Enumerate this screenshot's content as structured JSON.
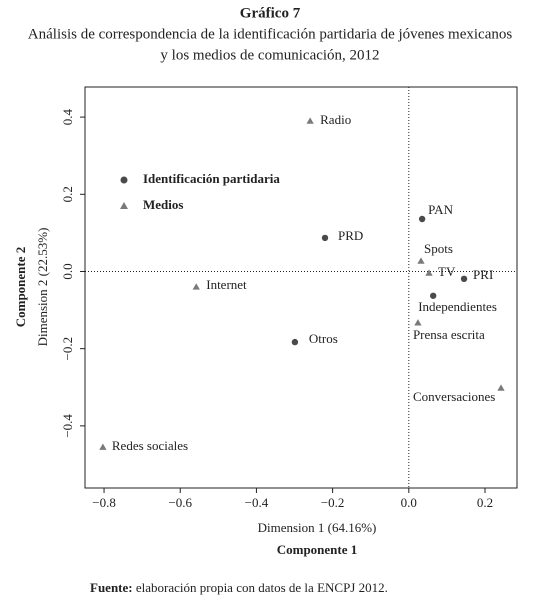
{
  "chart_data": {
    "type": "scatter",
    "title": "Gráfico 7",
    "subtitle": [
      "Análisis de correspondencia de la identificación partidaria de jóvenes mexicanos",
      "y los medios de comunicación, 2012"
    ],
    "x_label": "Dimension 1 (64.16%)",
    "x_label_2": "Componente 1",
    "y_label": "Dimension 2 (22.53%)",
    "y_label_2": "Componente 2",
    "source_prefix": "Fuente:",
    "source": "elaboración propia con datos de la ENCPJ 2012.",
    "xlim": [
      -0.85,
      0.284
    ],
    "ylim": [
      -0.561,
      0.478
    ],
    "xticks": [
      {
        "value": -0.8,
        "label": "−0.8"
      },
      {
        "value": -0.6,
        "label": "−0.6"
      },
      {
        "value": -0.4,
        "label": "−0.4"
      },
      {
        "value": -0.2,
        "label": "−0.2"
      },
      {
        "value": 0,
        "label": "0.0"
      },
      0.2
    ],
    "yticks": [
      {
        "value": -0.4,
        "label": "−0.4"
      },
      {
        "value": -0.2,
        "label": "−0.2"
      },
      {
        "value": 0,
        "label": "0.0"
      },
      0.2,
      0.4
    ],
    "zero_lines": true,
    "legend": "upper left",
    "series": [
      {
        "name": "Identificación partidaria",
        "marker": "circle",
        "color": "#4a4a4a",
        "labels": [
          "PAN",
          "PRD",
          "PRI",
          "Independientes",
          "Otros"
        ],
        "x": [
          0.035,
          -0.22,
          0.145,
          0.064,
          -0.299
        ],
        "values": [
          0.136,
          0.087,
          -0.019,
          -0.063,
          -0.183
        ]
      },
      {
        "name": "Medios",
        "marker": "triangle",
        "color": "#7a7a7a",
        "labels": [
          "Radio",
          "Spots",
          "TV",
          "Internet",
          "Prensa escrita",
          "Conversaciones",
          "Redes sociales"
        ],
        "x": [
          -0.259,
          0.032,
          0.053,
          -0.558,
          0.024,
          0.242,
          -0.803
        ],
        "values": [
          0.39,
          0.027,
          -0.004,
          -0.04,
          -0.133,
          -0.302,
          -0.455
        ]
      }
    ]
  }
}
